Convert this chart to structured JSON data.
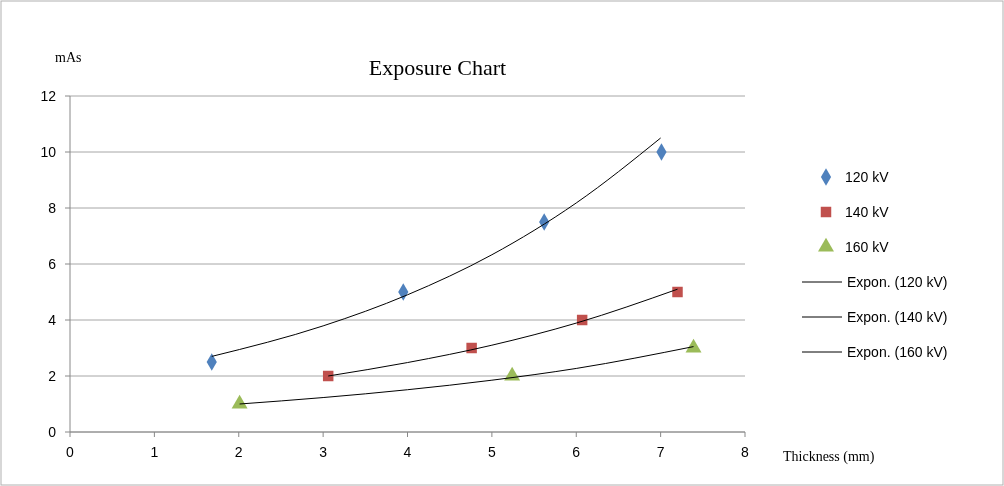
{
  "chart_data": {
    "type": "scatter",
    "title": "Exposure Chart",
    "xlabel": "Thickness (mm)",
    "ylabel": "mAs",
    "xlim": [
      0,
      8
    ],
    "ylim": [
      0,
      12
    ],
    "xticks": [
      0,
      1,
      2,
      3,
      4,
      5,
      6,
      7,
      8
    ],
    "yticks": [
      0,
      2,
      4,
      6,
      8,
      10,
      12
    ],
    "grid": "y",
    "legend": "right",
    "series": [
      {
        "name": "120 kV",
        "marker": "diamond",
        "color": "#4f81bd",
        "x": [
          1.68,
          3.95,
          5.62,
          7.01
        ],
        "values": [
          2.5,
          5,
          7.5,
          10
        ]
      },
      {
        "name": "140 kV",
        "marker": "square",
        "color": "#c0504d",
        "x": [
          3.06,
          4.76,
          6.07,
          7.2
        ],
        "values": [
          2,
          3,
          4,
          5
        ]
      },
      {
        "name": "160 kV",
        "marker": "triangle",
        "color": "#9bbb59",
        "x": [
          2.01,
          5.24,
          7.39
        ],
        "values": [
          1,
          2,
          3
        ]
      },
      {
        "name": "Expon. (120 kV)",
        "type": "line",
        "marker": "none",
        "color": "#000000",
        "x": [
          1.68,
          3,
          4,
          5,
          6,
          7
        ],
        "values": [
          2.7,
          3.79,
          4.9,
          6.33,
          8.18,
          10.5
        ]
      },
      {
        "name": "Expon. (140 kV)",
        "type": "line",
        "marker": "none",
        "color": "#000000",
        "x": [
          3.06,
          4,
          5,
          6,
          7.2
        ],
        "values": [
          2,
          2.48,
          3.1,
          3.89,
          5.1
        ]
      },
      {
        "name": "Expon. (160 kV)",
        "type": "line",
        "marker": "none",
        "color": "#000000",
        "x": [
          2.01,
          3,
          4,
          5,
          6,
          7.39
        ],
        "values": [
          1,
          1.23,
          1.51,
          1.85,
          2.27,
          3.05
        ]
      }
    ]
  }
}
